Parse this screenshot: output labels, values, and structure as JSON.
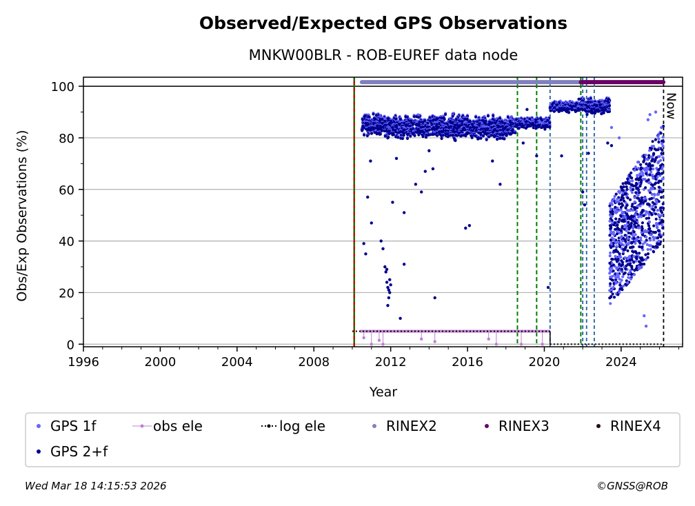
{
  "chart_data": {
    "type": "scatter",
    "title": "Observed/Expected GPS Observations",
    "subtitle": "MNKW00BLR - ROB-EUREF data node",
    "xlabel": "Year",
    "ylabel": "Obs/Exp Observations (%)",
    "xlim": [
      1996,
      2027.2
    ],
    "ylim": [
      -1,
      103.5
    ],
    "x_ticks": [
      {
        "value": 1996,
        "label": "1996"
      },
      {
        "value": 2000,
        "label": "2000"
      },
      {
        "value": 2004,
        "label": "2004"
      },
      {
        "value": 2008,
        "label": "2008"
      },
      {
        "value": 2012,
        "label": "2012"
      },
      {
        "value": 2016,
        "label": "2016"
      },
      {
        "value": 2020,
        "label": "2020"
      },
      {
        "value": 2024,
        "label": "2024"
      }
    ],
    "y_ticks": [
      {
        "value": 0,
        "label": "0"
      },
      {
        "value": 20,
        "label": "20"
      },
      {
        "value": 40,
        "label": "40"
      },
      {
        "value": 60,
        "label": "60"
      },
      {
        "value": 80,
        "label": "80"
      },
      {
        "value": 100,
        "label": "100"
      }
    ],
    "grid": "horizontal",
    "reference_line": 100,
    "now_label": "Now",
    "now_year": 2026.21,
    "start_line_year": 2010.1,
    "green_lines": [
      2010.1,
      2018.6,
      2019.6,
      2021.9
    ],
    "blue_lines": [
      2020.3,
      2022.0,
      2022.2,
      2022.6
    ],
    "rinex_bars": [
      {
        "series": "RINEX2",
        "color": "#8080c0",
        "segments": [
          [
            2010.5,
            2018.5
          ],
          [
            2018.6,
            2021.9
          ]
        ]
      },
      {
        "series": "RINEX3",
        "color": "#6a0066",
        "segments": [
          [
            2021.9,
            2026.2
          ]
        ]
      }
    ],
    "log_ele_segments": [
      {
        "x": [
          2010.0,
          2020.3
        ],
        "y": 5
      },
      {
        "x": [
          2020.3,
          2026.2
        ],
        "y": 0
      }
    ],
    "obs_ele": {
      "color": "#c080d0",
      "x_range": [
        2010.4,
        2020.3
      ],
      "y": 5,
      "dips": [
        [
          2010.6,
          2.5
        ],
        [
          2011.0,
          0
        ],
        [
          2011.4,
          1.5
        ],
        [
          2011.6,
          0
        ],
        [
          2013.6,
          2
        ],
        [
          2014.3,
          1
        ],
        [
          2017.1,
          2
        ],
        [
          2017.5,
          0
        ],
        [
          2018.8,
          0
        ],
        [
          2019.9,
          0
        ]
      ]
    },
    "gps_segments": [
      {
        "x": [
          2010.5,
          2011.7
        ],
        "mean": 85,
        "spread": 2.5,
        "gps1f_offset": 0
      },
      {
        "x": [
          2011.7,
          2018.5
        ],
        "mean": 84,
        "spread": 2.8,
        "gps1f_offset": 0
      },
      {
        "x": [
          2018.5,
          2020.3
        ],
        "mean": 85.5,
        "spread": 1.2,
        "gps1f_offset": 0
      },
      {
        "x": [
          2020.3,
          2021.9
        ],
        "mean": 92,
        "spread": 1.2,
        "gps1f_offset": 0
      },
      {
        "x": [
          2021.9,
          2023.4
        ],
        "mean": 92,
        "spread": 1.8,
        "gps1f_offset": 0
      }
    ],
    "gps_outliers": [
      [
        2010.6,
        39
      ],
      [
        2010.7,
        35
      ],
      [
        2010.8,
        57
      ],
      [
        2010.95,
        71
      ],
      [
        2011.0,
        47
      ],
      [
        2011.5,
        40
      ],
      [
        2011.6,
        37
      ],
      [
        2011.7,
        30
      ],
      [
        2011.75,
        28
      ],
      [
        2011.8,
        24
      ],
      [
        2011.85,
        22
      ],
      [
        2011.9,
        21
      ],
      [
        2011.95,
        25
      ],
      [
        2012.0,
        23
      ],
      [
        2011.8,
        29
      ],
      [
        2011.9,
        18
      ],
      [
        2011.85,
        15
      ],
      [
        2011.95,
        20
      ],
      [
        2012.1,
        55
      ],
      [
        2012.3,
        72
      ],
      [
        2012.5,
        10
      ],
      [
        2012.7,
        51
      ],
      [
        2012.7,
        31
      ],
      [
        2013.3,
        62
      ],
      [
        2013.6,
        59
      ],
      [
        2013.8,
        67
      ],
      [
        2014.0,
        75
      ],
      [
        2014.2,
        68
      ],
      [
        2014.3,
        18
      ],
      [
        2015.9,
        45
      ],
      [
        2016.1,
        46
      ],
      [
        2017.3,
        71
      ],
      [
        2017.7,
        62
      ],
      [
        2018.9,
        78
      ],
      [
        2019.1,
        91
      ],
      [
        2019.6,
        73
      ],
      [
        2020.2,
        22
      ],
      [
        2020.9,
        73
      ],
      [
        2021.8,
        95
      ],
      [
        2022.0,
        59
      ],
      [
        2022.1,
        54
      ],
      [
        2022.3,
        74
      ],
      [
        2023.3,
        78
      ],
      [
        2023.5,
        77
      ]
    ],
    "gps_scatter_late": {
      "x": [
        2023.4,
        2026.2
      ],
      "low_start": 15,
      "low_end": 40,
      "high_start": 55,
      "high_end": 85
    },
    "late_points": [
      [
        2023.5,
        84
      ],
      [
        2023.9,
        80
      ],
      [
        2025.2,
        11
      ],
      [
        2025.3,
        7
      ],
      [
        2025.4,
        87
      ],
      [
        2025.5,
        89
      ],
      [
        2025.8,
        90
      ],
      [
        2026.1,
        84
      ]
    ]
  },
  "legend": {
    "items": [
      {
        "key": "gps1f",
        "label": "GPS 1f",
        "color": "#6666ff"
      },
      {
        "key": "obsele",
        "label": "obs ele",
        "color": "#c080d0"
      },
      {
        "key": "logele",
        "label": "log ele",
        "color": "#000000"
      },
      {
        "key": "rinex2",
        "label": "RINEX2",
        "color": "#8080c0"
      },
      {
        "key": "rinex3",
        "label": "RINEX3",
        "color": "#6a0066"
      },
      {
        "key": "rinex4",
        "label": "RINEX4",
        "color": "#2a0a1a"
      },
      {
        "key": "gps2f",
        "label": "GPS 2+f",
        "color": "#00008b"
      }
    ]
  },
  "footer": {
    "timestamp": "Wed Mar 18 14:15:53 2026",
    "copyright": "©GNSS@ROB"
  }
}
